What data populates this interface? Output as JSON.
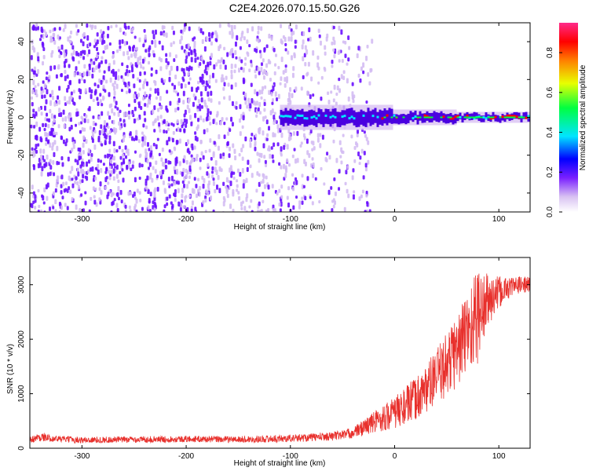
{
  "title": "C2E4.2026.070.15.50.G26",
  "colors": {
    "snr_line": "#e8302c",
    "colormap": [
      "#ffffff",
      "#d9c2f2",
      "#8a3cf0",
      "#6a00ff",
      "#0000ff",
      "#00e5ff",
      "#00ff40",
      "#e8ff00",
      "#ff8000",
      "#ff0000",
      "#ff2a8a"
    ]
  },
  "chart_data": [
    {
      "type": "heatmap",
      "name": "spectrogram",
      "xlabel": "Height of straight line (km)",
      "ylabel": "Frequency (Hz)",
      "xlim": [
        -350,
        130
      ],
      "ylim": [
        -50,
        50
      ],
      "xticks": [
        {
          "value": -300,
          "label": "-300"
        },
        {
          "value": -200,
          "label": "-200"
        },
        {
          "value": -100,
          "label": "-100"
        },
        {
          "value": 0,
          "label": "0"
        },
        {
          "value": 100,
          "label": "100"
        }
      ],
      "yticks": [
        {
          "value": -40,
          "label": "-40"
        },
        {
          "value": -20,
          "label": "-20"
        },
        {
          "value": 0,
          "label": "0"
        },
        {
          "value": 20,
          "label": "20"
        },
        {
          "value": 40,
          "label": "40"
        }
      ],
      "colorbar": {
        "label": "Normalized spectral amplitude",
        "range": [
          0,
          0.95
        ],
        "ticks": [
          {
            "value": 0.0,
            "label": "0.0"
          },
          {
            "value": 0.2,
            "label": "0.2"
          },
          {
            "value": 0.4,
            "label": "0.4"
          },
          {
            "value": 0.6,
            "label": "0.6"
          },
          {
            "value": 0.8,
            "label": "0.8"
          }
        ]
      },
      "regions": {
        "noise_band": {
          "x_from": -350,
          "x_to": -30,
          "freq_range": [
            -50,
            50
          ],
          "amplitude": [
            0.02,
            0.1
          ]
        },
        "signal_trace": {
          "x_from": -110,
          "x_to": 130,
          "freq_center": 0,
          "amplitude_peak": 0.9
        }
      }
    },
    {
      "type": "line",
      "name": "snr",
      "xlabel": "Height of straight line (km)",
      "ylabel": "SNR (10 * v/v)",
      "xlim": [
        -350,
        130
      ],
      "ylim": [
        0,
        3500
      ],
      "xticks": [
        {
          "value": -300,
          "label": "-300"
        },
        {
          "value": -200,
          "label": "-200"
        },
        {
          "value": -100,
          "label": "-100"
        },
        {
          "value": 0,
          "label": "0"
        },
        {
          "value": 100,
          "label": "100"
        }
      ],
      "yticks": [
        {
          "value": 0,
          "label": "0"
        },
        {
          "value": 1000,
          "label": "1000"
        },
        {
          "value": 2000,
          "label": "2000"
        },
        {
          "value": 3000,
          "label": "3000"
        }
      ],
      "series": [
        {
          "x": [
            -350,
            -340,
            -330,
            -300,
            -250,
            -200,
            -150,
            -100,
            -60,
            -40,
            -20,
            0,
            20,
            40,
            60,
            70,
            80,
            90,
            100,
            110,
            120,
            130
          ],
          "y": [
            150,
            210,
            180,
            150,
            160,
            170,
            160,
            180,
            220,
            280,
            480,
            650,
            900,
            1300,
            1800,
            2150,
            2450,
            2700,
            2850,
            2950,
            3000,
            3000
          ],
          "noise_amplitude": [
            60,
            80,
            60,
            60,
            60,
            60,
            60,
            70,
            80,
            100,
            200,
            300,
            400,
            500,
            700,
            800,
            900,
            500,
            300,
            200,
            150,
            150
          ]
        }
      ]
    }
  ]
}
